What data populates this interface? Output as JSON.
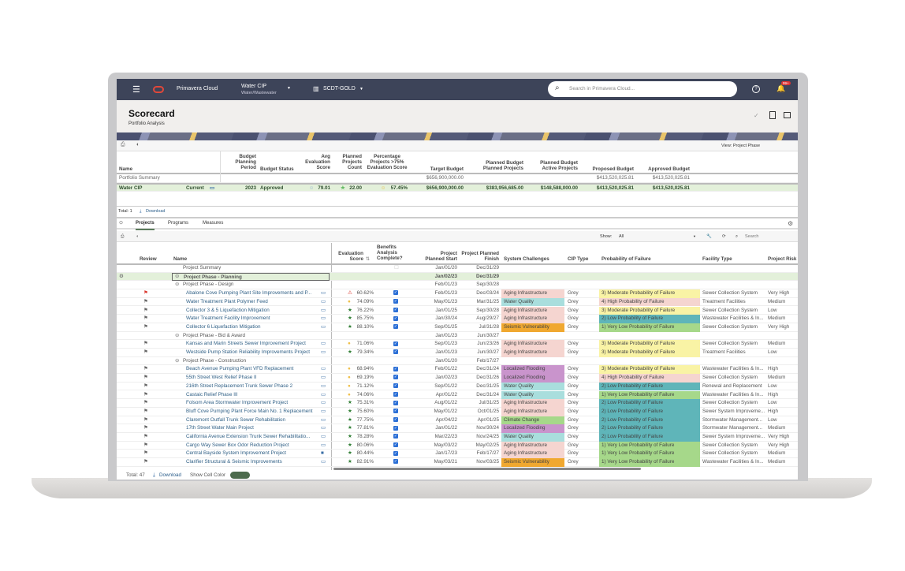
{
  "nav": {
    "app": "Primavera Cloud",
    "workspace": "Water CIP",
    "workspace_sub": "Water/Wastewater",
    "database": "SCDT-GOLD",
    "search_placeholder": "Search in Primavera Cloud...",
    "notif_badge": "99+"
  },
  "page": {
    "title": "Scorecard",
    "subtitle": "Portfolio Analysis",
    "view": "View: Project Phase"
  },
  "summary_table": {
    "headers": [
      "Name",
      "Budget Planning Period",
      "Budget Status",
      "Avg Evaluation Score",
      "Planned Projects Count",
      "Percentage Projects >75% Evaluation Score",
      "Target Budget",
      "Planned Budget Planned Projects",
      "Planned Budget Active Projects",
      "Proposed Budget",
      "Approved Budget"
    ],
    "portfolio_row": {
      "name": "Portfolio Summary",
      "target": "$656,900,000.00",
      "proposed": "$413,520,025.81",
      "approved": "$413,520,025.81"
    },
    "row": {
      "name": "Water CIP",
      "badge": "Current",
      "period": "2023",
      "status": "Approved",
      "avg_score": "79.01",
      "count": "22.00",
      "pct": "57.45%",
      "target": "$656,900,000.00",
      "planned_planned": "$383,956,685.00",
      "planned_active": "$148,588,000.00",
      "proposed": "$413,520,025.81",
      "approved": "$413,520,025.81"
    },
    "total": "Total: 1",
    "download": "Download"
  },
  "tabs": [
    "Projects",
    "Programs",
    "Measures"
  ],
  "filter": {
    "show_label": "Show:",
    "show_value": "All",
    "search_placeholder": "Search"
  },
  "projects_table": {
    "headers": [
      "Review",
      "Name",
      "Evaluation Score",
      "Benefits Analysis Complete?",
      "Project Planned Start",
      "Project Planned Finish",
      "System Challenges",
      "CIP Type",
      "Probability of Failure",
      "Facility Type",
      "Project Risk"
    ],
    "rows": [
      {
        "type": "summary",
        "name": "Project Summary",
        "start": "Jan/01/20",
        "finish": "Dec/31/29"
      },
      {
        "type": "group",
        "selected": true,
        "name": "Project Phase - Planning",
        "start": "Jan/02/23",
        "finish": "Dec/31/29"
      },
      {
        "type": "group",
        "name": "Project Phase - Design",
        "start": "Feb/01/23",
        "finish": "Sep/30/28"
      },
      {
        "flag": "red",
        "name": "Abalone Cove Pumping Plant Site Improvements and P...",
        "icon": "warn",
        "score": "60.62%",
        "start": "Feb/01/23",
        "finish": "Dec/03/24",
        "sys": "Aging Infrastructure",
        "cip": "Grey",
        "pof": "3) Moderate Probability of Failure",
        "fac": "Sewer Collection System",
        "risk": "Very High"
      },
      {
        "flag": "grey",
        "name": "Water Treatment Plant Polymer Feed",
        "icon": "circle",
        "score": "74.09%",
        "start": "May/01/23",
        "finish": "Mar/31/25",
        "sys": "Water Quality",
        "cip": "Grey",
        "pof": "4) High Probability of Failure",
        "fac": "Treatment Facilities",
        "risk": "Medium"
      },
      {
        "flag": "grey",
        "name": "Collector 3 & 5 Liquefaction Mitigation",
        "icon": "star",
        "score": "76.22%",
        "start": "Jan/01/25",
        "finish": "Sep/30/28",
        "sys": "Aging Infrastructure",
        "cip": "Grey",
        "pof": "3) Moderate Probability of Failure",
        "fac": "Sewer Collection System",
        "risk": "Low"
      },
      {
        "flag": "grey",
        "name": "Water Treatment Facility Improvement",
        "icon": "star",
        "score": "85.75%",
        "start": "Jan/30/24",
        "finish": "Aug/29/27",
        "sys": "Aging Infrastructure",
        "cip": "Grey",
        "pof": "2) Low Probability of Failure",
        "fac": "Wastewater Facilities & In...",
        "risk": "Medium"
      },
      {
        "flag": "grey",
        "name": "Collector 6 Liquefaction Mitigation",
        "icon": "star",
        "score": "88.10%",
        "start": "Sep/01/25",
        "finish": "Jul/31/28",
        "sys": "Seismic Vulnerability",
        "cip": "Grey",
        "pof": "1) Very Low Probability of Failure",
        "fac": "Sewer Collection System",
        "risk": "Very High"
      },
      {
        "type": "group",
        "name": "Project Phase - Bid & Award",
        "start": "Jan/01/23",
        "finish": "Jun/30/27"
      },
      {
        "flag": "grey",
        "name": "Kansas and Marin Streets Sewer Improvement Project",
        "icon": "circle",
        "score": "71.06%",
        "start": "Sep/01/23",
        "finish": "Jun/23/26",
        "sys": "Aging Infrastructure",
        "cip": "Grey",
        "pof": "3) Moderate Probability of Failure",
        "fac": "Sewer Collection System",
        "risk": "Medium"
      },
      {
        "flag": "grey",
        "name": "Westside Pump Station Reliability Improvements Project",
        "icon": "star",
        "score": "79.34%",
        "start": "Jan/01/23",
        "finish": "Jun/30/27",
        "sys": "Aging Infrastructure",
        "cip": "Grey",
        "pof": "3) Moderate Probability of Failure",
        "fac": "Treatment Facilities",
        "risk": "Low"
      },
      {
        "type": "group",
        "name": "Project Phase - Construction",
        "start": "Jan/01/20",
        "finish": "Feb/17/27"
      },
      {
        "flag": "grey",
        "name": "Beach Avenue Pumping Plant VFD Replacement",
        "icon": "circle",
        "score": "68.94%",
        "start": "Feb/01/22",
        "finish": "Dec/31/24",
        "sys": "Localized Flooding",
        "cip": "Grey",
        "pof": "3) Moderate Probability of Failure",
        "fac": "Wastewater Facilities & In...",
        "risk": "High"
      },
      {
        "flag": "grey",
        "name": "55th Street West Relief Phase II",
        "icon": "circle",
        "score": "69.19%",
        "start": "Jan/02/23",
        "finish": "Dec/31/26",
        "sys": "Localized Flooding",
        "cip": "Grey",
        "pof": "4) High Probability of Failure",
        "fac": "Sewer Collection System",
        "risk": "Medium"
      },
      {
        "flag": "grey",
        "name": "216th Street Replacement Trunk Sewer Phase 2",
        "icon": "circle",
        "score": "71.12%",
        "start": "Sep/01/22",
        "finish": "Dec/31/25",
        "sys": "Water Quality",
        "cip": "Grey",
        "pof": "2) Low Probability of Failure",
        "fac": "Renewal and Replacement",
        "risk": "Low"
      },
      {
        "flag": "grey",
        "name": "Castaic Relief Phase III",
        "icon": "circle",
        "score": "74.06%",
        "start": "Apr/01/22",
        "finish": "Dec/31/24",
        "sys": "Water Quality",
        "cip": "Grey",
        "pof": "1) Very Low Probability of Failure",
        "fac": "Wastewater Facilities & In...",
        "risk": "High"
      },
      {
        "flag": "grey",
        "name": "Folsom Area Stormwater Improvement Project",
        "icon": "star",
        "score": "75.31%",
        "start": "Aug/01/22",
        "finish": "Jul/31/25",
        "sys": "Aging Infrastructure",
        "cip": "Grey",
        "pof": "2) Low Probability of Failure",
        "fac": "Sewer Collection System",
        "risk": "Low"
      },
      {
        "flag": "grey",
        "name": "Bluff Cove Pumping Plant Force Main No. 1 Replacement",
        "icon": "star",
        "score": "75.60%",
        "start": "May/01/22",
        "finish": "Oct/01/25",
        "sys": "Aging Infrastructure",
        "cip": "Grey",
        "pof": "2) Low Probability of Failure",
        "fac": "Sewer System Improveme...",
        "risk": "High"
      },
      {
        "flag": "grey",
        "name": "Claremont Outfall Trunk Sewer Rehabilitation",
        "icon": "star",
        "score": "77.75%",
        "start": "Apr/04/22",
        "finish": "Apr/01/25",
        "sys": "Climate Change",
        "cip": "Grey",
        "pof": "2) Low Probability of Failure",
        "fac": "Stormwater Management...",
        "risk": "Low"
      },
      {
        "flag": "grey",
        "name": "17th Street Water Main Project",
        "icon": "star",
        "score": "77.81%",
        "start": "Jan/01/22",
        "finish": "Nov/30/24",
        "sys": "Localized Flooding",
        "cip": "Grey",
        "pof": "2) Low Probability of Failure",
        "fac": "Stormwater Management...",
        "risk": "Medium"
      },
      {
        "flag": "grey",
        "name": "California Avenue Extension Trunk Sewer Rehabilitatio...",
        "icon": "star",
        "score": "78.28%",
        "start": "Mar/22/23",
        "finish": "Nov/24/25",
        "sys": "Water Quality",
        "cip": "Grey",
        "pof": "2) Low Probability of Failure",
        "fac": "Sewer System Improveme...",
        "risk": "Very High"
      },
      {
        "flag": "grey",
        "name": "Cargo Way Sewer Box Odor Reduction Project",
        "icon": "star",
        "score": "80.06%",
        "start": "May/03/22",
        "finish": "May/02/25",
        "sys": "Aging Infrastructure",
        "cip": "Grey",
        "pof": "1) Very Low Probability of Failure",
        "fac": "Sewer Collection System",
        "risk": "Very High"
      },
      {
        "flag": "grey",
        "comment_filled": true,
        "name": "Central Bayside System Improvement Project",
        "icon": "star",
        "score": "80.44%",
        "start": "Jan/17/23",
        "finish": "Feb/17/27",
        "sys": "Aging Infrastructure",
        "cip": "Grey",
        "pof": "1) Very Low Probability of Failure",
        "fac": "Sewer Collection System",
        "risk": "Medium"
      },
      {
        "flag": "grey",
        "name": "Clarifier Structural & Seismic Improvements",
        "icon": "star",
        "score": "82.91%",
        "start": "May/03/21",
        "finish": "Nov/03/25",
        "sys": "Seismic Vulnerability",
        "cip": "Grey",
        "pof": "1) Very Low Probability of Failure",
        "fac": "Wastewater Facilities & In...",
        "risk": "Medium"
      }
    ],
    "total": "Total: 47",
    "download": "Download",
    "cell_color_label": "Show Cell Color",
    "cell_color_on": true
  },
  "colors": {
    "nav": "#3d4459",
    "selected_row": "#e3f0da",
    "Aging Infrastructure": "#f5d5d0",
    "Water Quality": "#a9dedd",
    "Seismic Vulnerability": "#f0a830",
    "Localized Flooding": "#c994cc",
    "Climate Change": "#a6d88a",
    "pof_1": "#a6d88a",
    "pof_2": "#5fb5b9",
    "pof_3": "#f9f3a5",
    "pof_4": "#f5d5d0"
  }
}
